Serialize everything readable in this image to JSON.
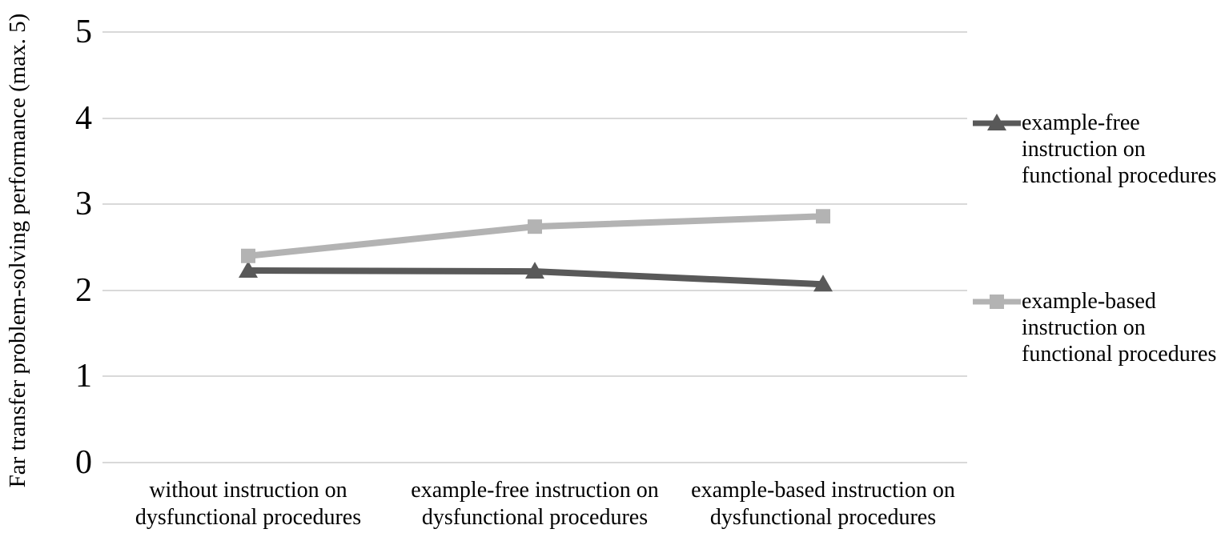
{
  "chart_data": {
    "type": "line",
    "title": "",
    "ylabel": "Far transfer problem-solving performance (max. 5)",
    "xlabel": "",
    "ylim": [
      0,
      5
    ],
    "yticks": [
      0,
      1,
      2,
      3,
      4,
      5
    ],
    "grid": "horizontal",
    "legend_position": "right",
    "categories": [
      "without instruction on\ndysfunctional procedures",
      "example-free instruction on\ndysfunctional procedures",
      "example-based instruction on\ndysfunctional procedures"
    ],
    "series": [
      {
        "name": "example-free instruction on functional procedures",
        "values": [
          2.23,
          2.22,
          2.07
        ],
        "color": "#595959",
        "marker": "triangle"
      },
      {
        "name": "example-based instruction on functional procedures",
        "values": [
          2.4,
          2.74,
          2.86
        ],
        "color": "#b3b3b3",
        "marker": "square"
      }
    ],
    "colors": {
      "gridline": "#d9d9d9",
      "text": "#000000",
      "background": "#ffffff"
    }
  },
  "legend": {
    "items": [
      {
        "label": "example-free\ninstruction on\nfunctional procedures",
        "marker": "triangle",
        "color": "#595959"
      },
      {
        "label": "example-based\ninstruction on\nfunctional procedures",
        "marker": "square",
        "color": "#b3b3b3"
      }
    ]
  }
}
